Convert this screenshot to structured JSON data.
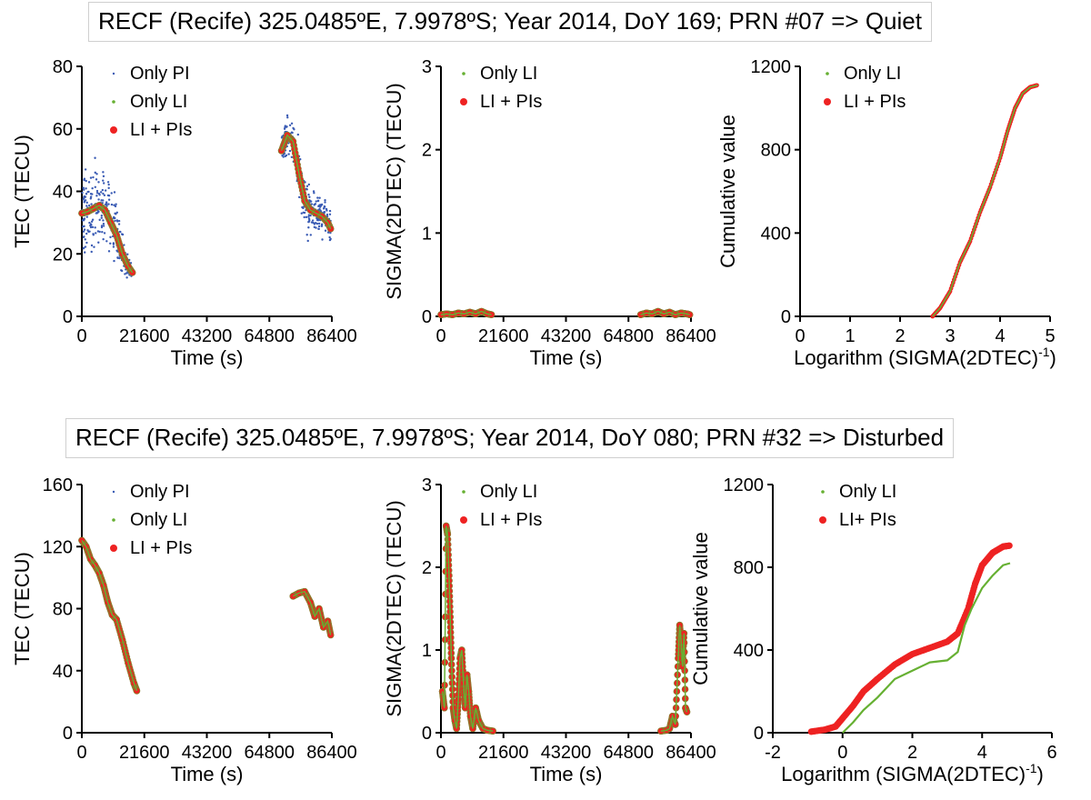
{
  "figure": {
    "top_banner": "RECF (Recife)  325.0485ºE, 7.9978ºS; Year 2014, DoY 169; PRN #07 => Quiet",
    "bottom_banner": "RECF (Recife)  325.0485ºE, 7.9978ºS; Year 2014, DoY 080; PRN #32 => Disturbed"
  },
  "colors": {
    "pi": "#3a5bb4",
    "li": "#66b032",
    "lipi": "#ee2222",
    "lipi_edge": "#8a7a2a"
  },
  "chart_data": [
    {
      "id": "quiet-tec",
      "type": "scatter",
      "row": "quiet",
      "xlabel": "Time (s)",
      "ylabel": "TEC (TECU)",
      "xlim": [
        0,
        86400
      ],
      "ylim": [
        0,
        80
      ],
      "xticks": [
        0,
        21600,
        43200,
        64800,
        86400
      ],
      "yticks": [
        0,
        20,
        40,
        60,
        80
      ],
      "legend": [
        {
          "label": "Only PI",
          "series": "pi"
        },
        {
          "label": "Only LI",
          "series": "li"
        },
        {
          "label": "LI + PIs",
          "series": "lipi"
        }
      ],
      "series": [
        {
          "name": "Only PI (scatter band)",
          "kind": "pi",
          "x": [
            0,
            2000,
            4000,
            6000,
            8000,
            10000,
            12000,
            14000,
            16000,
            17500,
            69000,
            71000,
            73000,
            75000,
            77000,
            79000,
            81000,
            83000,
            85000,
            86000
          ],
          "y": [
            33,
            34,
            35,
            36,
            35,
            31,
            27,
            20,
            16,
            14,
            53,
            58,
            56,
            46,
            37,
            34,
            33,
            32,
            30,
            28
          ],
          "spread": [
            5,
            6,
            6,
            7,
            5,
            5,
            4,
            3,
            2,
            1,
            2,
            3,
            3,
            4,
            4,
            4,
            3,
            3,
            3,
            3
          ]
        },
        {
          "name": "LI + PIs",
          "kind": "lipi",
          "x": [
            0,
            2000,
            4000,
            6000,
            8000,
            10000,
            12000,
            14000,
            16000,
            17500,
            69000,
            71000,
            73000,
            75000,
            77000,
            79000,
            81000,
            83000,
            85000,
            86000
          ],
          "y": [
            33,
            33.5,
            34.5,
            35.5,
            34,
            30,
            26,
            20,
            16,
            14,
            53,
            58,
            56,
            46,
            37,
            34,
            33,
            32,
            30,
            28
          ]
        }
      ]
    },
    {
      "id": "quiet-sigma",
      "type": "scatter",
      "row": "quiet",
      "xlabel": "Time (s)",
      "ylabel": "SIGMA(2DTEC) (TECU)",
      "xlim": [
        0,
        86400
      ],
      "ylim": [
        0,
        3
      ],
      "xticks": [
        0,
        21600,
        43200,
        64800,
        86400
      ],
      "yticks": [
        0,
        1,
        2,
        3
      ],
      "legend": [
        {
          "label": "Only LI",
          "series": "li"
        },
        {
          "label": "LI + PIs",
          "series": "lipi"
        }
      ],
      "series": [
        {
          "name": "LI + PIs",
          "kind": "lipi",
          "x": [
            0,
            2000,
            4000,
            6000,
            8000,
            10000,
            12000,
            14000,
            16000,
            17500,
            69000,
            71000,
            73000,
            75000,
            77000,
            79000,
            81000,
            83000,
            85000,
            86000
          ],
          "y": [
            0.02,
            0.03,
            0.02,
            0.04,
            0.03,
            0.05,
            0.03,
            0.06,
            0.03,
            0.02,
            0.02,
            0.04,
            0.03,
            0.06,
            0.03,
            0.05,
            0.02,
            0.04,
            0.03,
            0.02
          ]
        }
      ]
    },
    {
      "id": "quiet-cumulative",
      "type": "line",
      "row": "quiet",
      "xlabel": "Logarithm (SIGMA(2DTEC)",
      "xlabel_sup": "-1",
      "xlabel_end": ")",
      "ylabel": "Cumulative value",
      "xlim": [
        0,
        5
      ],
      "ylim": [
        0,
        1200
      ],
      "xticks": [
        0,
        1,
        2,
        3,
        4,
        5
      ],
      "yticks": [
        0,
        400,
        800,
        1200
      ],
      "legend": [
        {
          "label": "Only LI",
          "series": "li"
        },
        {
          "label": "LI + PIs",
          "series": "lipi"
        }
      ],
      "series": [
        {
          "name": "LI + PIs",
          "kind": "lipi-line",
          "x": [
            2.65,
            2.8,
            3.0,
            3.2,
            3.4,
            3.6,
            3.8,
            4.0,
            4.15,
            4.3,
            4.45,
            4.6,
            4.75
          ],
          "y": [
            0,
            40,
            120,
            260,
            360,
            500,
            620,
            760,
            890,
            1000,
            1070,
            1100,
            1110
          ]
        },
        {
          "name": "Only LI",
          "kind": "li-line",
          "x": [
            2.65,
            2.8,
            3.0,
            3.2,
            3.4,
            3.6,
            3.8,
            4.0,
            4.15,
            4.3,
            4.45,
            4.6,
            4.75
          ],
          "y": [
            0,
            40,
            120,
            260,
            360,
            500,
            620,
            760,
            890,
            1000,
            1070,
            1100,
            1110
          ]
        }
      ]
    },
    {
      "id": "disturbed-tec",
      "type": "scatter",
      "row": "disturbed",
      "xlabel": "Time (s)",
      "ylabel": "TEC (TECU)",
      "xlim": [
        0,
        86400
      ],
      "ylim": [
        0,
        160
      ],
      "xticks": [
        0,
        21600,
        43200,
        64800,
        86400
      ],
      "yticks": [
        0,
        40,
        80,
        120,
        160
      ],
      "legend": [
        {
          "label": "Only PI",
          "series": "pi"
        },
        {
          "label": "Only LI",
          "series": "li"
        },
        {
          "label": "LI + PIs",
          "series": "lipi"
        }
      ],
      "series": [
        {
          "name": "LI + PIs",
          "kind": "lipi",
          "x": [
            0,
            1500,
            3000,
            4500,
            6000,
            7500,
            9000,
            10500,
            12000,
            14000,
            16000,
            18000,
            19000,
            73000,
            75000,
            77000,
            79000,
            80500,
            82000,
            83500,
            85000,
            86000
          ],
          "y": [
            124,
            120,
            112,
            108,
            103,
            95,
            84,
            76,
            73,
            60,
            45,
            32,
            27,
            88,
            90,
            91,
            84,
            75,
            80,
            68,
            72,
            63
          ]
        }
      ]
    },
    {
      "id": "disturbed-sigma",
      "type": "scatter",
      "row": "disturbed",
      "xlabel": "Time (s)",
      "ylabel": "SIGMA(2DTEC) (TECU)",
      "xlim": [
        0,
        86400
      ],
      "ylim": [
        0,
        3
      ],
      "xticks": [
        0,
        21600,
        43200,
        64800,
        86400
      ],
      "yticks": [
        0,
        1,
        2,
        3
      ],
      "legend": [
        {
          "label": "Only LI",
          "series": "li"
        },
        {
          "label": "LI + PIs",
          "series": "lipi"
        }
      ],
      "series": [
        {
          "name": "LI + PIs",
          "kind": "lipi",
          "x": [
            500,
            1200,
            1800,
            2300,
            2800,
            3200,
            3600,
            4200,
            4800,
            5400,
            6000,
            6600,
            7200,
            7800,
            8400,
            9000,
            9600,
            10200,
            11000,
            12000,
            13000,
            14500,
            16000,
            18000,
            76000,
            78000,
            79000,
            80000,
            81000,
            82000,
            82500,
            83000,
            83500,
            84000,
            84500,
            85000
          ],
          "y": [
            0.5,
            0.3,
            2.5,
            2.4,
            1.9,
            1.4,
            0.9,
            0.3,
            0.15,
            0.05,
            0.4,
            0.9,
            1.0,
            0.6,
            0.3,
            0.7,
            0.5,
            0.2,
            0.05,
            0.3,
            0.15,
            0.05,
            0.03,
            0.02,
            0.02,
            0.03,
            0.05,
            0.2,
            0.1,
            0.9,
            1.3,
            1.1,
            0.8,
            1.2,
            0.3,
            0.25
          ]
        }
      ]
    },
    {
      "id": "disturbed-cumulative",
      "type": "line",
      "row": "disturbed",
      "xlabel": "Logarithm (SIGMA(2DTEC)",
      "xlabel_sup": "-1",
      "xlabel_end": ")",
      "ylabel": "Cumulative value",
      "xlim": [
        -2,
        6
      ],
      "ylim": [
        0,
        1200
      ],
      "xticks": [
        -2,
        0,
        2,
        4,
        6
      ],
      "yticks": [
        0,
        400,
        800,
        1200
      ],
      "legend": [
        {
          "label": "Only LI",
          "series": "li"
        },
        {
          "label": "LI+ PIs",
          "series": "lipi"
        }
      ],
      "series": [
        {
          "name": "LI+ PIs",
          "kind": "lipi-line",
          "x": [
            -0.9,
            -0.5,
            -0.2,
            0.0,
            0.3,
            0.6,
            1.0,
            1.5,
            2.0,
            2.5,
            3.0,
            3.3,
            3.6,
            3.8,
            4.0,
            4.3,
            4.6,
            4.8
          ],
          "y": [
            5,
            15,
            30,
            70,
            130,
            200,
            260,
            330,
            380,
            410,
            440,
            480,
            600,
            720,
            810,
            870,
            900,
            905
          ]
        },
        {
          "name": "Only LI",
          "kind": "li-line",
          "x": [
            0.0,
            0.3,
            0.6,
            1.0,
            1.5,
            2.0,
            2.5,
            3.0,
            3.3,
            3.5,
            3.7,
            4.0,
            4.3,
            4.6,
            4.8
          ],
          "y": [
            0,
            50,
            110,
            170,
            260,
            300,
            340,
            350,
            390,
            520,
            600,
            700,
            760,
            810,
            820
          ]
        }
      ]
    }
  ]
}
